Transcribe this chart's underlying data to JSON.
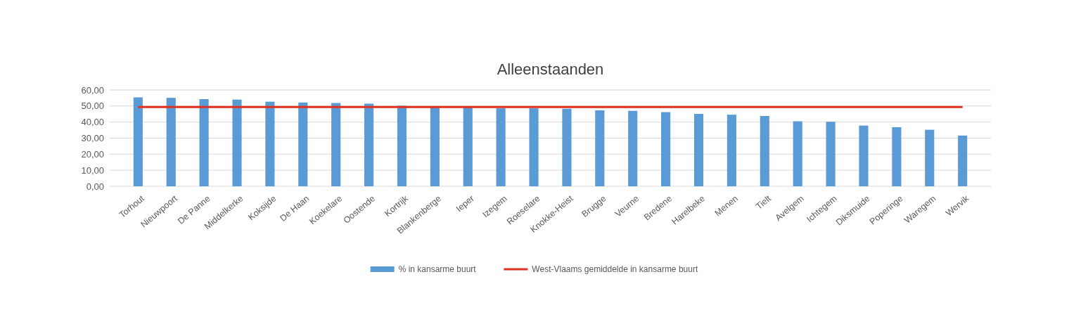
{
  "chart_data": {
    "type": "bar",
    "title": "Alleenstaanden",
    "categories": [
      "Torhout",
      "Nieuwpoort",
      "De Panne",
      "Middelkerke",
      "Koksijde",
      "De Haan",
      "Koekelare",
      "Oostende",
      "Kortrijk",
      "Blankenberge",
      "Ieper",
      "Izegem",
      "Roeselare",
      "Knokke-Heist",
      "Brugge",
      "Veurne",
      "Bredene",
      "Harelbeke",
      "Menen",
      "Tielt",
      "Avelgem",
      "Ichtegem",
      "Diksmuide",
      "Poperinge",
      "Waregem",
      "Wervik"
    ],
    "series": [
      {
        "name": "% in kansarme buurt",
        "color": "#5b9bd5",
        "values": [
          55.4,
          55.1,
          54.3,
          54,
          52.7,
          52.2,
          51.9,
          51.5,
          50.2,
          49.4,
          49.1,
          48.6,
          48.6,
          48.3,
          47.3,
          47,
          46.2,
          45.1,
          44.6,
          43.8,
          40.5,
          40.2,
          37.8,
          36.8,
          35.2,
          31.6
        ]
      },
      {
        "name": "West-Vlaams gemiddelde in kansarme buurt",
        "type": "line",
        "color": "#e0301e",
        "values": [
          49.4,
          49.4,
          49.4,
          49.4,
          49.4,
          49.4,
          49.4,
          49.4,
          49.4,
          49.4,
          49.4,
          49.4,
          49.4,
          49.4,
          49.4,
          49.4,
          49.4,
          49.4,
          49.4,
          49.4,
          49.4,
          49.4,
          49.4,
          49.4,
          49.4,
          49.4
        ]
      }
    ],
    "ylim": [
      0,
      60
    ],
    "yticks": [
      {
        "value": 0,
        "label": "0,00"
      },
      {
        "value": 10,
        "label": "10,00"
      },
      {
        "value": 20,
        "label": "20,00"
      },
      {
        "value": 30,
        "label": "30,00"
      },
      {
        "value": 40,
        "label": "40,00"
      },
      {
        "value": 50,
        "label": "50,00"
      },
      {
        "value": 60,
        "label": "60,00"
      }
    ],
    "grid": "y",
    "legend": "bottom",
    "marker": "none",
    "line_style": "solid"
  }
}
